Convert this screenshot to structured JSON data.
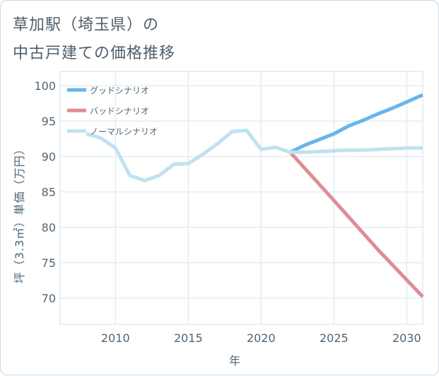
{
  "title_lines": [
    "草加駅（埼玉県）の",
    "中古戸建ての価格推移"
  ],
  "chart_data": {
    "type": "line",
    "title": "草加駅（埼玉県）の中古戸建ての価格推移",
    "xlabel": "年",
    "ylabel": "坪（3.3㎡）単価（万円）",
    "xlim": [
      2006.2,
      2031.1
    ],
    "ylim": [
      66.3,
      102.0
    ],
    "x_ticks": [
      2010,
      2015,
      2020,
      2025,
      2030
    ],
    "y_ticks": [
      70,
      75,
      80,
      85,
      90,
      95,
      100
    ],
    "grid": true,
    "legend_position": "top-left",
    "series": [
      {
        "name": "グッドシナリオ",
        "color": "#6ab4ec",
        "x": [
          2022,
          2023,
          2024,
          2025,
          2026,
          2027,
          2028,
          2029,
          2030,
          2031.1
        ],
        "y": [
          90.6,
          91.6,
          92.4,
          93.2,
          94.3,
          95.1,
          96.0,
          96.8,
          97.7,
          98.7
        ]
      },
      {
        "name": "バッドシナリオ",
        "color": "#df8c95",
        "x": [
          2022,
          2025,
          2028,
          2031.1
        ],
        "y": [
          90.6,
          83.8,
          76.9,
          70.2
        ]
      },
      {
        "name": "ノーマルシナリオ",
        "color": "#bfe2f0",
        "x": [
          2008,
          2009,
          2010,
          2011,
          2012,
          2013,
          2014,
          2015,
          2016,
          2017,
          2018,
          2019,
          2020,
          2021,
          2022,
          2023,
          2024,
          2025,
          2026,
          2027,
          2028,
          2029,
          2030,
          2031.1
        ],
        "y": [
          93.2,
          92.6,
          91.2,
          87.3,
          86.6,
          87.3,
          88.9,
          89.0,
          90.3,
          91.8,
          93.5,
          93.7,
          91.0,
          91.3,
          90.6,
          90.6,
          90.7,
          90.8,
          90.9,
          90.9,
          91.0,
          91.1,
          91.2,
          91.2
        ]
      }
    ]
  }
}
